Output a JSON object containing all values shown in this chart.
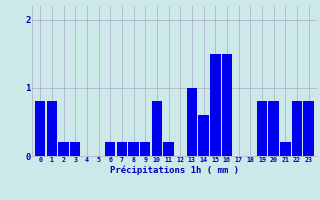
{
  "hours": [
    0,
    1,
    2,
    3,
    4,
    5,
    6,
    7,
    8,
    9,
    10,
    11,
    12,
    13,
    14,
    15,
    16,
    17,
    18,
    19,
    20,
    21,
    22,
    23
  ],
  "values": [
    0.8,
    0.8,
    0.2,
    0.2,
    0.0,
    0.0,
    0.2,
    0.2,
    0.2,
    0.2,
    0.8,
    0.2,
    0.0,
    1.0,
    0.6,
    1.5,
    1.5,
    0.0,
    0.0,
    0.8,
    0.8,
    0.2,
    0.8,
    0.8
  ],
  "bar_color": "#0000ee",
  "background_color": "#cce8e8",
  "grid_color": "#aaaacc",
  "ylabel_values": [
    0,
    1,
    2
  ],
  "ylim": [
    0,
    2.2
  ],
  "xlabel": "Précipitations 1h ( mm )",
  "xlabel_color": "#0000bb",
  "tick_color": "#0000bb",
  "bar_width": 0.9
}
